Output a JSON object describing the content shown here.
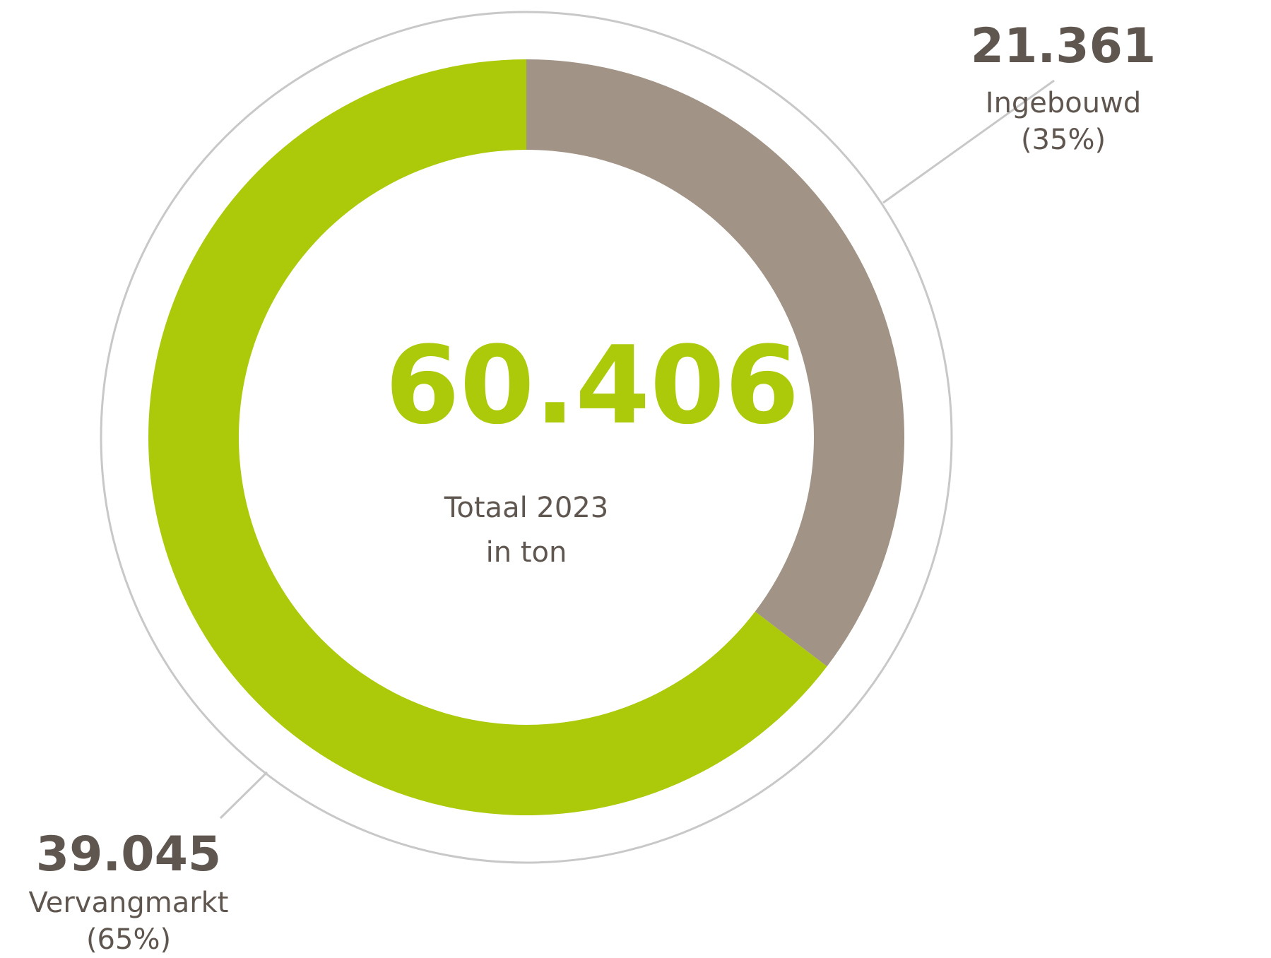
{
  "chart_data": {
    "type": "pie",
    "center": {
      "value": "60.406",
      "label_line1": "Totaal 2023",
      "label_line2": "in ton"
    },
    "slices": [
      {
        "label": "Ingebouwd",
        "value_text": "21.361",
        "value": 21361,
        "percent_text": "(35%)",
        "percent": 35,
        "color": "#a19385"
      },
      {
        "label": "Vervangmarkt",
        "value_text": "39.045",
        "value": 39045,
        "percent_text": "(65%)",
        "percent": 65,
        "color": "#acc90a"
      }
    ],
    "colors": {
      "text": "#5f564f",
      "accent": "#acc90a",
      "outline": "#c8c8c8"
    }
  }
}
